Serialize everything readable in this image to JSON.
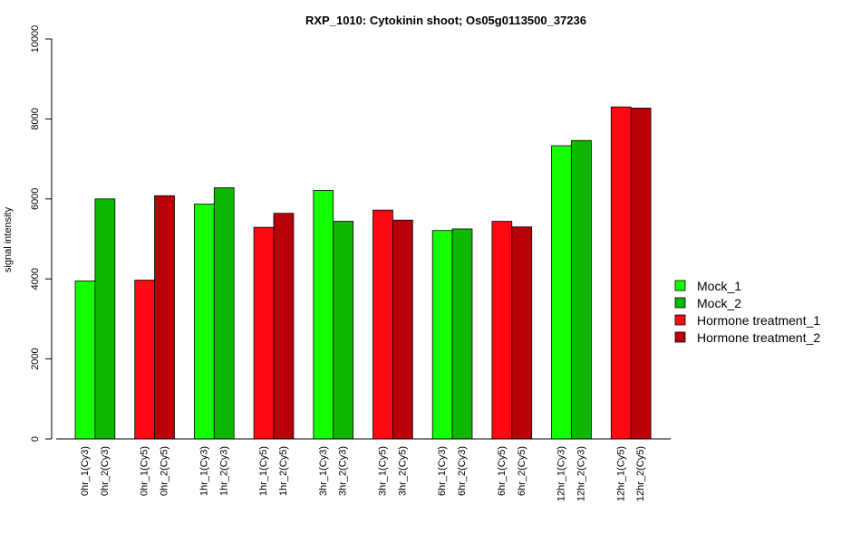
{
  "chart_data": {
    "type": "bar",
    "title": "RXP_1010: Cytokinin shoot; Os05g0113500_37236",
    "xlabel": "",
    "ylabel": "signal intensity",
    "ylim": [
      0,
      10000
    ],
    "yticks": [
      0,
      2000,
      4000,
      6000,
      8000,
      10000
    ],
    "grid": false,
    "legend_position": "right",
    "categories": [
      "0hr_1(Cy3)",
      "0hr_2(Cy3)",
      "0hr_1(Cy5)",
      "0hr_2(Cy5)",
      "1hr_1(Cy3)",
      "1hr_2(Cy3)",
      "1hr_1(Cy5)",
      "1hr_2(Cy5)",
      "3hr_1(Cy3)",
      "3hr_2(Cy3)",
      "3hr_1(Cy5)",
      "3hr_2(Cy5)",
      "6hr_1(Cy3)",
      "6hr_2(Cy3)",
      "6hr_1(Cy5)",
      "6hr_2(Cy5)",
      "12hr_1(Cy3)",
      "12hr_2(Cy3)",
      "12hr_1(Cy5)",
      "12hr_2(Cy5)"
    ],
    "values": [
      3950,
      6000,
      3970,
      6080,
      5870,
      6280,
      5290,
      5640,
      6210,
      5440,
      5720,
      5470,
      5210,
      5250,
      5440,
      5300,
      7330,
      7460,
      8300,
      8270
    ],
    "bar_series_index": [
      0,
      1,
      2,
      3,
      0,
      1,
      2,
      3,
      0,
      1,
      2,
      3,
      0,
      1,
      2,
      3,
      0,
      1,
      2,
      3
    ],
    "series": [
      {
        "name": "Mock_1",
        "color": "#14ff00"
      },
      {
        "name": "Mock_2",
        "color": "#0fb800"
      },
      {
        "name": "Hormone treatment_1",
        "color": "#ff0a13"
      },
      {
        "name": "Hormone treatment_2",
        "color": "#b80008"
      }
    ]
  }
}
